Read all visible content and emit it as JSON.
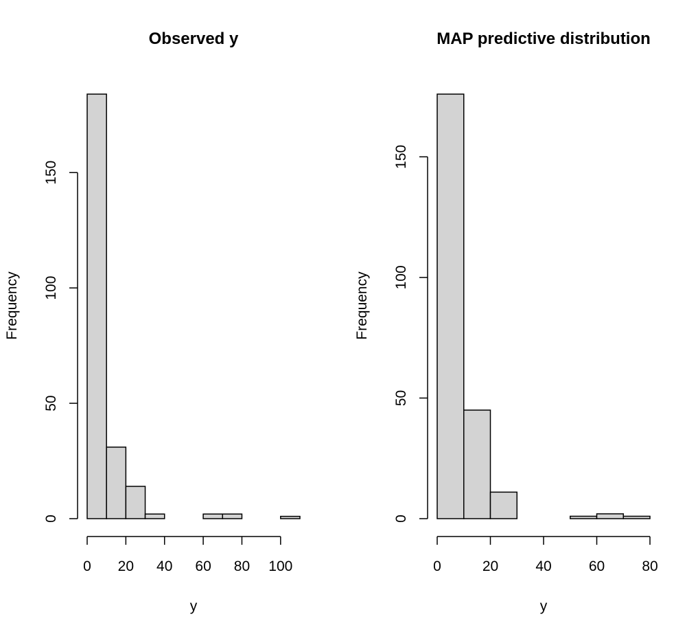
{
  "chart_data": [
    {
      "type": "bar",
      "title": "Observed y",
      "xlabel": "y",
      "ylabel": "Frequency",
      "bin_edges": [
        0,
        10,
        20,
        30,
        40,
        50,
        60,
        70,
        80,
        90,
        100,
        110
      ],
      "values": [
        184,
        31,
        14,
        2,
        0,
        0,
        2,
        2,
        0,
        0,
        1
      ],
      "xlim": [
        0,
        110
      ],
      "ylim": [
        0,
        184
      ],
      "x_ticks": [
        0,
        20,
        40,
        60,
        80,
        100
      ],
      "y_ticks": [
        0,
        50,
        100,
        150
      ],
      "bar_fill": "#d3d3d3",
      "bar_stroke": "#000000"
    },
    {
      "type": "bar",
      "title": "MAP predictive distribution",
      "xlabel": "y",
      "ylabel": "Frequency",
      "bin_edges": [
        0,
        10,
        20,
        30,
        40,
        50,
        60,
        70,
        80
      ],
      "values": [
        176,
        45,
        11,
        0,
        0,
        1,
        2,
        1
      ],
      "xlim": [
        0,
        80
      ],
      "ylim": [
        0,
        176
      ],
      "x_ticks": [
        0,
        20,
        40,
        60,
        80
      ],
      "y_ticks": [
        0,
        50,
        100,
        150
      ],
      "bar_fill": "#d3d3d3",
      "bar_stroke": "#000000"
    }
  ]
}
